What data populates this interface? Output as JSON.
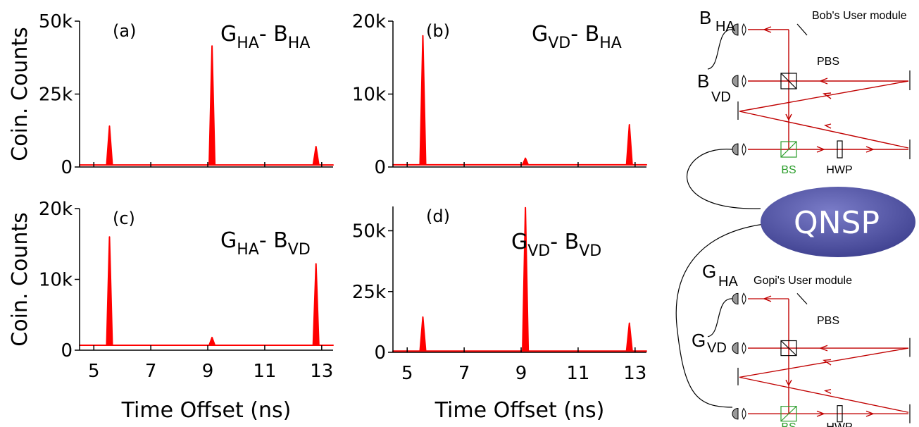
{
  "chart_data": [
    {
      "type": "area",
      "panel": "(a)",
      "annotation": [
        "G",
        "HA",
        "- B",
        "HA"
      ],
      "x": [
        4.5,
        5.45,
        5.55,
        5.65,
        9.05,
        9.15,
        9.25,
        12.7,
        12.8,
        12.9,
        13.4
      ],
      "series": [
        {
          "color": "#ff0000",
          "values": [
            700,
            700,
            14000,
            700,
            700,
            41500,
            700,
            700,
            7000,
            700,
            700
          ]
        }
      ],
      "xlim": [
        4.5,
        13.4
      ],
      "xticks": [
        5,
        7,
        9,
        11,
        13
      ],
      "show_xtick_labels": false,
      "ylim": [
        0,
        50000
      ],
      "yticks": [
        0,
        {
          "value": 25000,
          "label": "25k"
        },
        {
          "value": 50000,
          "label": "50k"
        }
      ],
      "ylabel": "Coin. Counts"
    },
    {
      "type": "area",
      "panel": "(b)",
      "annotation": [
        "G",
        "VD",
        "- B",
        "HA"
      ],
      "x": [
        4.5,
        5.45,
        5.55,
        5.65,
        9.05,
        9.15,
        9.25,
        12.7,
        12.8,
        12.9,
        13.4
      ],
      "series": [
        {
          "color": "#ff0000",
          "values": [
            300,
            300,
            18000,
            300,
            300,
            1200,
            300,
            300,
            5800,
            300,
            300
          ]
        }
      ],
      "xlim": [
        4.5,
        13.4
      ],
      "xticks": [
        5,
        7,
        9,
        11,
        13
      ],
      "show_xtick_labels": false,
      "ylim": [
        0,
        20000
      ],
      "yticks": [
        0,
        {
          "value": 10000,
          "label": "10k"
        },
        {
          "value": 20000,
          "label": "20k"
        }
      ]
    },
    {
      "type": "area",
      "panel": "(c)",
      "annotation": [
        "G",
        "HA",
        "- B",
        "VD"
      ],
      "x": [
        4.5,
        5.45,
        5.55,
        5.65,
        9.05,
        9.15,
        9.25,
        12.7,
        12.8,
        12.9,
        13.4
      ],
      "series": [
        {
          "color": "#ff0000",
          "values": [
            700,
            700,
            16000,
            700,
            700,
            1800,
            700,
            700,
            12200,
            700,
            700
          ]
        }
      ],
      "xlim": [
        4.5,
        13.4
      ],
      "xticks": [
        5,
        7,
        9,
        11,
        13
      ],
      "show_xtick_labels": true,
      "ylim": [
        0,
        20000
      ],
      "yticks": [
        0,
        {
          "value": 10000,
          "label": "10k"
        },
        {
          "value": 20000,
          "label": "20k"
        }
      ],
      "ylabel": "Coin. Counts",
      "xlabel": "Time Offset (ns)"
    },
    {
      "type": "area",
      "panel": "(d)",
      "annotation": [
        "G",
        "VD",
        "- B",
        "VD"
      ],
      "x": [
        4.5,
        5.45,
        5.55,
        5.65,
        9.05,
        9.15,
        9.25,
        12.7,
        12.8,
        12.9,
        13.4
      ],
      "series": [
        {
          "color": "#ff0000",
          "values": [
            500,
            500,
            14500,
            500,
            500,
            59500,
            500,
            500,
            12000,
            500,
            500
          ]
        }
      ],
      "xlim": [
        4.5,
        13.4
      ],
      "xticks": [
        5,
        7,
        9,
        11,
        13
      ],
      "show_xtick_labels": true,
      "ylim": [
        0,
        60000
      ],
      "yticks": [
        0,
        {
          "value": 25000,
          "label": "25k"
        },
        {
          "value": 50000,
          "label": "50k"
        }
      ],
      "xlabel": "Time Offset (ns)"
    }
  ],
  "diagram": {
    "bob": {
      "detector_ha": [
        "B",
        "HA"
      ],
      "title": "Bob's User module",
      "pbs": "PBS",
      "detector_vd": [
        "B",
        "VD"
      ],
      "bs": "BS",
      "hwp": "HWP"
    },
    "source": "QNSP",
    "gopi": {
      "detector_ha": [
        "G",
        "HA"
      ],
      "title": "Gopi's User module",
      "pbs": "PBS",
      "detector_vd": [
        "G",
        "VD"
      ],
      "bs": "BS",
      "hwp": "HWP"
    }
  }
}
